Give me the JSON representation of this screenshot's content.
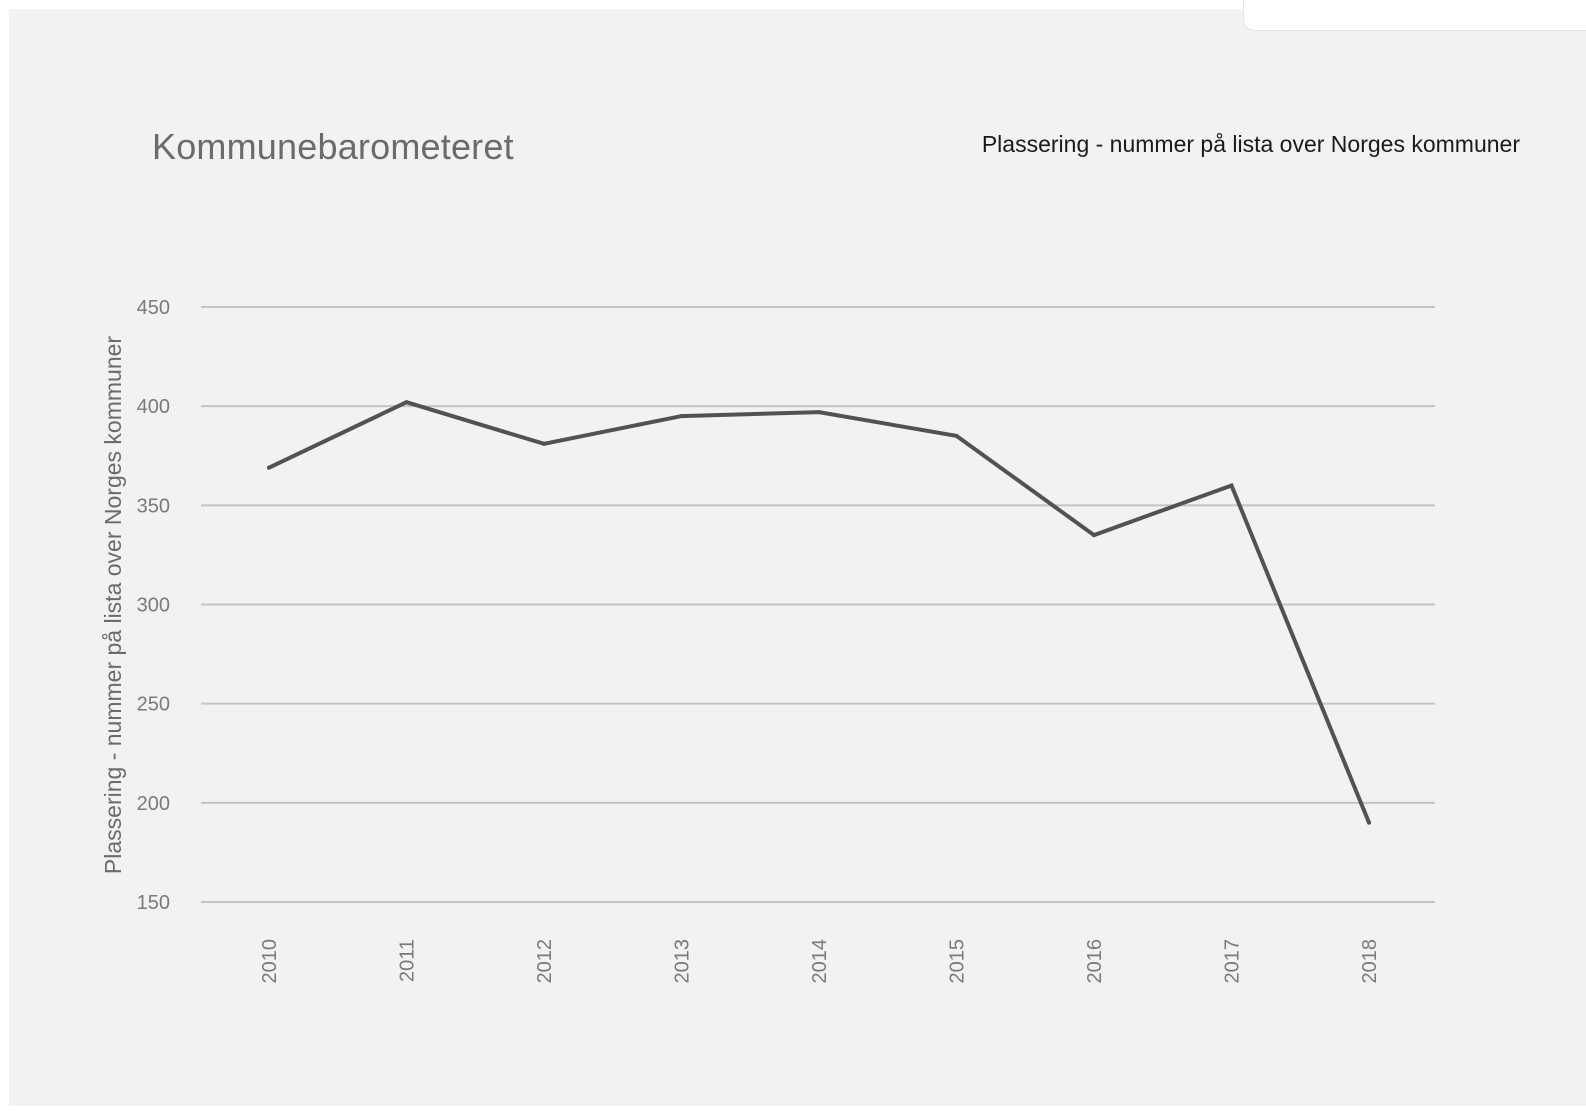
{
  "chart_data": {
    "type": "line",
    "title": "Kommunebarometeret",
    "ylabel": "Plassering - nummer på lista over Norges kommuner",
    "xlabel": "",
    "x": [
      "2010",
      "2011",
      "2012",
      "2013",
      "2014",
      "2015",
      "2016",
      "2017",
      "2018"
    ],
    "series": [
      {
        "name": "Plassering - nummer på lista over Norges kommuner",
        "values": [
          369,
          402,
          381,
          395,
          397,
          385,
          335,
          360,
          190
        ]
      }
    ],
    "ylim": [
      150,
      450
    ],
    "yticks": [
      "150",
      "200",
      "250",
      "300",
      "350",
      "400",
      "450"
    ],
    "grid": true,
    "legend_position": "top-right",
    "colors": {
      "line": "#525252",
      "grid": "#c4c4c4",
      "background": "#f2f2f2"
    }
  }
}
